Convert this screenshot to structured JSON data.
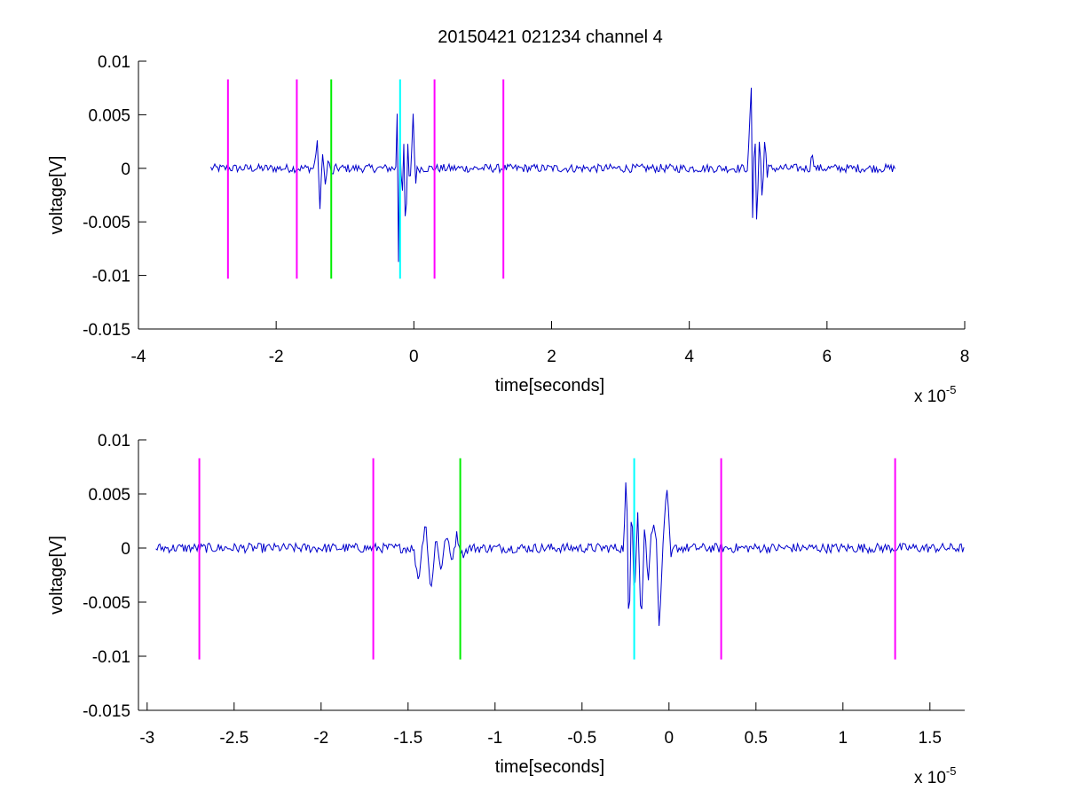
{
  "figure_title": "20150421 021234 channel 4",
  "chart_data": [
    {
      "type": "line",
      "title": "20150421 021234 channel 4",
      "xlabel": "time[seconds]",
      "ylabel": "voltage[V]",
      "x_exponent_label": "x 10",
      "x_exponent": "-5",
      "xlim": [
        -4,
        8
      ],
      "ylim": [
        -0.015,
        0.01
      ],
      "xticks": [
        "-4",
        "-2",
        "0",
        "2",
        "4",
        "6",
        "8"
      ],
      "yticks": [
        "0.01",
        "0.005",
        "0",
        "-0.005",
        "-0.01",
        "-0.015"
      ],
      "grid": false,
      "series": [
        {
          "color": "#0000cc",
          "x_range": [
            -2.95,
            7.0
          ],
          "noise_amplitude": 0.0004,
          "bursts": [
            {
              "start": -1.45,
              "end": -1.15,
              "peaks": [
                [
                  -1.4,
                  0.0028
                ],
                [
                  -1.37,
                  -0.0043
                ],
                [
                  -1.33,
                  0.0012
                ],
                [
                  -1.28,
                  -0.0015
                ],
                [
                  -1.24,
                  0.0011
                ],
                [
                  -1.2,
                  -0.0008
                ]
              ]
            },
            {
              "start": -0.25,
              "end": 0.05,
              "peaks": [
                [
                  -0.24,
                  0.0077
                ],
                [
                  -0.225,
                  -0.0093
                ],
                [
                  -0.2,
                  0.0057
                ],
                [
                  -0.175,
                  -0.0048
                ],
                [
                  -0.15,
                  0.0035
                ],
                [
                  -0.12,
                  -0.0075
                ],
                [
                  -0.09,
                  0.0025
                ],
                [
                  -0.06,
                  -0.0025
                ],
                [
                  -0.01,
                  0.0053
                ],
                [
                  0.02,
                  -0.0015
                ]
              ]
            },
            {
              "start": 4.85,
              "end": 5.15,
              "peaks": [
                [
                  4.9,
                  0.0077
                ],
                [
                  4.92,
                  -0.0057
                ],
                [
                  4.95,
                  0.0055
                ],
                [
                  4.98,
                  -0.0058
                ],
                [
                  5.02,
                  0.0035
                ],
                [
                  5.06,
                  -0.0035
                ],
                [
                  5.1,
                  0.0037
                ],
                [
                  5.13,
                  -0.001
                ]
              ]
            },
            {
              "start": 5.75,
              "end": 5.82,
              "peaks": [
                [
                  5.79,
                  0.0015
                ]
              ]
            }
          ]
        }
      ],
      "vlines": [
        {
          "x": -2.7,
          "color": "#ff00ff",
          "y0": -0.0103,
          "y1": 0.0083
        },
        {
          "x": -1.7,
          "color": "#ff00ff",
          "y0": -0.0103,
          "y1": 0.0083
        },
        {
          "x": -1.2,
          "color": "#00ee00",
          "y0": -0.0103,
          "y1": 0.0083
        },
        {
          "x": -0.2,
          "color": "#00ffff",
          "y0": -0.0103,
          "y1": 0.0083
        },
        {
          "x": 0.3,
          "color": "#ff00ff",
          "y0": -0.0103,
          "y1": 0.0083
        },
        {
          "x": 1.3,
          "color": "#ff00ff",
          "y0": -0.0103,
          "y1": 0.0083
        }
      ]
    },
    {
      "type": "line",
      "title": "",
      "xlabel": "time[seconds]",
      "ylabel": "voltage[V]",
      "x_exponent_label": "x 10",
      "x_exponent": "-5",
      "xlim": [
        -3.05,
        1.7
      ],
      "ylim": [
        -0.015,
        0.01
      ],
      "xticks": [
        "-3",
        "-2.5",
        "-2",
        "-1.5",
        "-1",
        "-0.5",
        "0",
        "0.5",
        "1",
        "1.5"
      ],
      "yticks": [
        "0.01",
        "0.005",
        "0",
        "-0.005",
        "-0.01",
        "-0.015"
      ],
      "grid": false,
      "series": [
        {
          "color": "#0000cc",
          "x_range": [
            -2.95,
            1.7
          ],
          "noise_amplitude": 0.00045,
          "bursts": [
            {
              "start": -1.47,
              "end": -1.15,
              "peaks": [
                [
                  -1.44,
                  -0.003
                ],
                [
                  -1.4,
                  0.0028
                ],
                [
                  -1.37,
                  -0.0043
                ],
                [
                  -1.34,
                  0.001
                ],
                [
                  -1.31,
                  -0.002
                ],
                [
                  -1.28,
                  0.0013
                ],
                [
                  -1.25,
                  -0.0012
                ],
                [
                  -1.22,
                  0.0012
                ],
                [
                  -1.19,
                  -0.0006
                ]
              ]
            },
            {
              "start": -0.26,
              "end": 0.03,
              "peaks": [
                [
                  -0.245,
                  0.0077
                ],
                [
                  -0.23,
                  -0.0093
                ],
                [
                  -0.215,
                  0.0057
                ],
                [
                  -0.2,
                  -0.005
                ],
                [
                  -0.18,
                  0.0035
                ],
                [
                  -0.16,
                  -0.0075
                ],
                [
                  -0.14,
                  0.0022
                ],
                [
                  -0.12,
                  -0.003
                ],
                [
                  -0.1,
                  0.002
                ],
                [
                  -0.075,
                  0.0016
                ],
                [
                  -0.055,
                  -0.0078
                ],
                [
                  -0.03,
                  0.0022
                ],
                [
                  -0.01,
                  0.0053
                ],
                [
                  0.01,
                  -0.001
                ]
              ]
            }
          ]
        }
      ],
      "vlines": [
        {
          "x": -2.7,
          "color": "#ff00ff",
          "y0": -0.0103,
          "y1": 0.0083
        },
        {
          "x": -1.7,
          "color": "#ff00ff",
          "y0": -0.0103,
          "y1": 0.0083
        },
        {
          "x": -1.2,
          "color": "#00ee00",
          "y0": -0.0103,
          "y1": 0.0083
        },
        {
          "x": -0.2,
          "color": "#00ffff",
          "y0": -0.0103,
          "y1": 0.0083
        },
        {
          "x": 0.3,
          "color": "#ff00ff",
          "y0": -0.0103,
          "y1": 0.0083
        },
        {
          "x": 1.3,
          "color": "#ff00ff",
          "y0": -0.0103,
          "y1": 0.0083
        }
      ]
    }
  ]
}
